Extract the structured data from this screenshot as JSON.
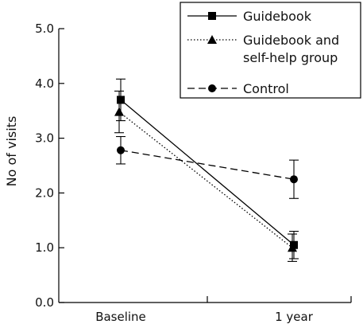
{
  "chart_data": {
    "type": "line",
    "title": "",
    "xlabel": "",
    "ylabel": "No of visits",
    "categories": [
      "Baseline",
      "1 year"
    ],
    "ylim": [
      0,
      5
    ],
    "yticks": [
      "0.0",
      "1.0",
      "2.0",
      "3.0",
      "4.0",
      "5.0"
    ],
    "legend_position": "top-right",
    "grid": false,
    "series": [
      {
        "name": "Guidebook",
        "values": [
          3.7,
          1.05
        ],
        "error": [
          0.38,
          0.25
        ],
        "marker": "square",
        "line_style": "solid",
        "color": "#000000"
      },
      {
        "name": "Guidebook and self-help group",
        "values": [
          3.48,
          1.0
        ],
        "error": [
          0.38,
          0.25
        ],
        "marker": "triangle",
        "line_style": "dotted",
        "color": "#000000"
      },
      {
        "name": "Control",
        "values": [
          2.78,
          2.25
        ],
        "error": [
          0.25,
          0.35
        ],
        "marker": "circle",
        "line_style": "dashed",
        "color": "#000000"
      }
    ]
  }
}
